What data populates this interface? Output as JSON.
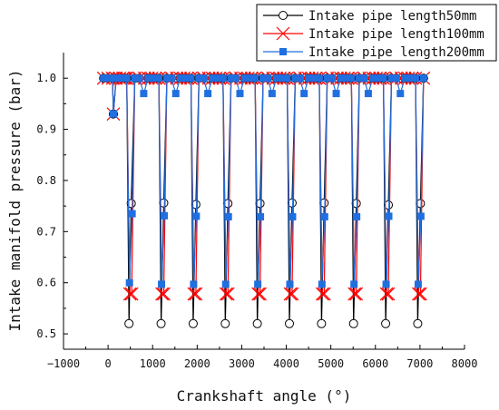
{
  "chart_data": {
    "type": "line",
    "title": "",
    "xlabel": "Crankshaft angle (°)",
    "ylabel": "Intake manifold pressure (bar)",
    "xlim": [
      -1000,
      8000
    ],
    "ylim": [
      0.47,
      1.05
    ],
    "xticks": [
      -1000,
      0,
      1000,
      2000,
      3000,
      4000,
      5000,
      6000,
      7000,
      8000
    ],
    "yticks": [
      0.5,
      0.6,
      0.7,
      0.8,
      0.9,
      1.0
    ],
    "xtick_labels": [
      "−1000",
      "0",
      "1000",
      "2000",
      "3000",
      "4000",
      "5000",
      "6000",
      "7000",
      "8000"
    ],
    "ytick_labels": [
      "0.5",
      "0.6",
      "0.7",
      "0.8",
      "0.9",
      "1.0"
    ],
    "grid": false,
    "legend_position": "top-right",
    "cycles": 10,
    "cycle_period_deg": 720,
    "series": [
      {
        "name": "Intake pipe length50mm",
        "color": "#000000",
        "marker": "open-circle",
        "x": [
          -100,
          0,
          100,
          120,
          180,
          260,
          330,
          380,
          420,
          470,
          520,
          600,
          700,
          820,
          900,
          980,
          1060,
          1140,
          1190,
          1250,
          1320,
          1430,
          1540,
          1620,
          1700,
          1780,
          1860,
          1910,
          1970,
          2040,
          2150,
          2260,
          2340,
          2420,
          2500,
          2580,
          2630,
          2690,
          2760,
          2870,
          2980,
          3060,
          3140,
          3220,
          3300,
          3350,
          3410,
          3480,
          3590,
          3700,
          3780,
          3860,
          3940,
          4020,
          4070,
          4130,
          4200,
          4310,
          4420,
          4500,
          4580,
          4660,
          4740,
          4790,
          4850,
          4920,
          5030,
          5140,
          5220,
          5300,
          5380,
          5460,
          5510,
          5570,
          5640,
          5750,
          5860,
          5940,
          6020,
          6100,
          6180,
          6230,
          6290,
          6360,
          6470,
          6580,
          6660,
          6740,
          6820,
          6900,
          6950,
          7010,
          7080
        ],
        "y": [
          1.0,
          1.0,
          1.0,
          0.93,
          1.0,
          1.0,
          1.0,
          1.0,
          1.0,
          0.52,
          0.755,
          1.0,
          1.0,
          1.0,
          1.0,
          1.0,
          1.0,
          1.0,
          0.52,
          0.756,
          1.0,
          1.0,
          1.0,
          1.0,
          1.0,
          1.0,
          1.0,
          0.52,
          0.753,
          1.0,
          1.0,
          1.0,
          1.0,
          1.0,
          1.0,
          1.0,
          0.52,
          0.755,
          1.0,
          1.0,
          1.0,
          1.0,
          1.0,
          1.0,
          1.0,
          0.52,
          0.755,
          1.0,
          1.0,
          1.0,
          1.0,
          1.0,
          1.0,
          1.0,
          0.52,
          0.756,
          1.0,
          1.0,
          1.0,
          1.0,
          1.0,
          1.0,
          1.0,
          0.52,
          0.756,
          1.0,
          1.0,
          1.0,
          1.0,
          1.0,
          1.0,
          1.0,
          0.52,
          0.755,
          1.0,
          1.0,
          1.0,
          1.0,
          1.0,
          1.0,
          1.0,
          0.52,
          0.752,
          1.0,
          1.0,
          1.0,
          1.0,
          1.0,
          1.0,
          1.0,
          0.52,
          0.755,
          1.0
        ]
      },
      {
        "name": "Intake pipe length100mm",
        "color": "#ff0000",
        "marker": "x-cross",
        "x": [
          -100,
          0,
          100,
          120,
          180,
          260,
          330,
          380,
          420,
          490,
          530,
          600,
          700,
          820,
          900,
          980,
          1060,
          1140,
          1210,
          1250,
          1320,
          1430,
          1540,
          1620,
          1700,
          1780,
          1860,
          1930,
          1970,
          2040,
          2150,
          2260,
          2340,
          2420,
          2500,
          2580,
          2650,
          2690,
          2760,
          2870,
          2980,
          3060,
          3140,
          3220,
          3300,
          3370,
          3410,
          3480,
          3590,
          3700,
          3780,
          3860,
          3940,
          4020,
          4090,
          4130,
          4200,
          4310,
          4420,
          4500,
          4580,
          4660,
          4740,
          4810,
          4850,
          4920,
          5030,
          5140,
          5220,
          5300,
          5380,
          5460,
          5530,
          5570,
          5640,
          5750,
          5860,
          5940,
          6020,
          6100,
          6180,
          6250,
          6290,
          6360,
          6470,
          6580,
          6660,
          6740,
          6820,
          6900,
          6970,
          7010,
          7080
        ],
        "y": [
          1.0,
          1.0,
          1.0,
          0.93,
          1.0,
          1.0,
          1.0,
          1.0,
          1.0,
          0.578,
          0.578,
          1.0,
          1.0,
          1.0,
          1.0,
          1.0,
          1.0,
          1.0,
          0.578,
          0.578,
          1.0,
          1.0,
          1.0,
          1.0,
          1.0,
          1.0,
          1.0,
          0.578,
          0.578,
          1.0,
          1.0,
          1.0,
          1.0,
          1.0,
          1.0,
          1.0,
          0.578,
          0.578,
          1.0,
          1.0,
          1.0,
          1.0,
          1.0,
          1.0,
          1.0,
          0.578,
          0.578,
          1.0,
          1.0,
          1.0,
          1.0,
          1.0,
          1.0,
          1.0,
          0.578,
          0.578,
          1.0,
          1.0,
          1.0,
          1.0,
          1.0,
          1.0,
          1.0,
          0.578,
          0.578,
          1.0,
          1.0,
          1.0,
          1.0,
          1.0,
          1.0,
          1.0,
          0.578,
          0.578,
          1.0,
          1.0,
          1.0,
          1.0,
          1.0,
          1.0,
          1.0,
          0.578,
          0.578,
          1.0,
          1.0,
          1.0,
          1.0,
          1.0,
          1.0,
          1.0,
          0.578,
          0.578,
          1.0
        ]
      },
      {
        "name": "Intake pipe length200mm",
        "color": "#1f6fe0",
        "marker": "filled-square",
        "x": [
          -100,
          0,
          100,
          120,
          180,
          260,
          330,
          380,
          420,
          480,
          540,
          600,
          700,
          800,
          900,
          980,
          1060,
          1140,
          1200,
          1260,
          1320,
          1420,
          1520,
          1620,
          1700,
          1780,
          1860,
          1920,
          1980,
          2040,
          2140,
          2240,
          2340,
          2420,
          2500,
          2580,
          2640,
          2700,
          2760,
          2860,
          2960,
          3060,
          3140,
          3220,
          3300,
          3360,
          3420,
          3480,
          3580,
          3680,
          3780,
          3860,
          3940,
          4020,
          4080,
          4140,
          4200,
          4300,
          4400,
          4500,
          4580,
          4660,
          4740,
          4800,
          4860,
          4920,
          5020,
          5120,
          5220,
          5300,
          5380,
          5460,
          5520,
          5580,
          5640,
          5740,
          5840,
          5940,
          6020,
          6100,
          6180,
          6240,
          6300,
          6360,
          6460,
          6560,
          6660,
          6740,
          6820,
          6900,
          6960,
          7020,
          7080
        ],
        "y": [
          1.0,
          1.0,
          1.0,
          0.93,
          1.0,
          1.0,
          1.0,
          1.0,
          1.0,
          0.6,
          0.735,
          1.0,
          1.0,
          0.97,
          1.0,
          1.0,
          1.0,
          1.0,
          0.597,
          0.731,
          1.0,
          1.0,
          0.97,
          1.0,
          1.0,
          1.0,
          1.0,
          0.597,
          0.73,
          1.0,
          1.0,
          0.97,
          1.0,
          1.0,
          1.0,
          1.0,
          0.597,
          0.729,
          1.0,
          1.0,
          0.97,
          1.0,
          1.0,
          1.0,
          1.0,
          0.597,
          0.729,
          1.0,
          1.0,
          0.97,
          1.0,
          1.0,
          1.0,
          1.0,
          0.597,
          0.729,
          1.0,
          1.0,
          0.97,
          1.0,
          1.0,
          1.0,
          1.0,
          0.597,
          0.729,
          1.0,
          1.0,
          0.97,
          1.0,
          1.0,
          1.0,
          1.0,
          0.597,
          0.729,
          1.0,
          1.0,
          0.97,
          1.0,
          1.0,
          1.0,
          1.0,
          0.597,
          0.73,
          1.0,
          1.0,
          0.97,
          1.0,
          1.0,
          1.0,
          1.0,
          0.597,
          0.73,
          1.0
        ]
      }
    ]
  }
}
